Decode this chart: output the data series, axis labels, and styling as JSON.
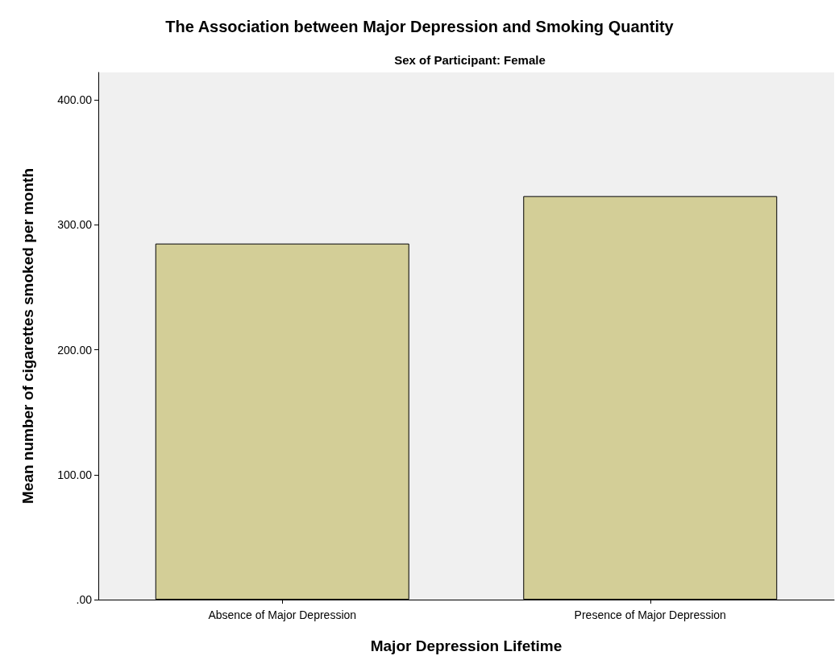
{
  "chart_data": {
    "type": "bar",
    "title": "The Association between Major Depression and Smoking Quantity",
    "subtitle": "Sex of Participant: Female",
    "xlabel": "Major Depression Lifetime",
    "ylabel": "Mean number of cigarettes smoked per month",
    "categories": [
      "Absence of Major Depression",
      "Presence of Major Depression"
    ],
    "values": [
      285,
      323
    ],
    "color": "#d3ce97",
    "ylim": [
      0,
      422
    ],
    "yticks": [
      {
        "value": 0,
        "label": ".00"
      },
      {
        "value": 100,
        "label": "100.00"
      },
      {
        "value": 200,
        "label": "200.00"
      },
      {
        "value": 300,
        "label": "300.00"
      },
      {
        "value": 400,
        "label": "400.00"
      }
    ],
    "grid": false
  }
}
